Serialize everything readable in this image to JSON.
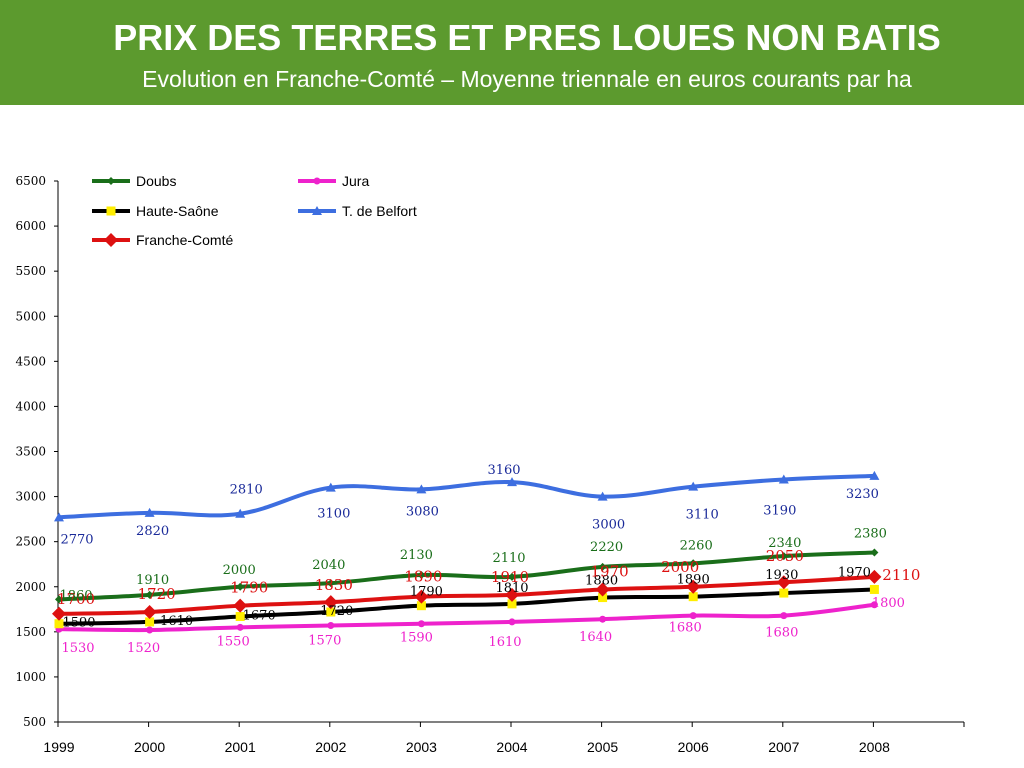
{
  "header": {
    "title": "PRIX DES TERRES ET PRES LOUES NON BATIS",
    "subtitle": "Evolution en Franche-Comté – Moyenne triennale en euros courants par ha",
    "background_color": "#5c9a2e"
  },
  "chart_data": {
    "type": "line",
    "title": "PRIX DES TERRES ET PRES LOUES NON BATIS",
    "subtitle": "Evolution en Franche-Comté – Moyenne triennale en euros courants par ha",
    "xlabel": "",
    "ylabel": "",
    "x": [
      "1999",
      "2000",
      "2001",
      "2002",
      "2003",
      "2004",
      "2005",
      "2006",
      "2007",
      "2008"
    ],
    "ylim": [
      500,
      6500
    ],
    "yticks": [
      500,
      1000,
      1500,
      2000,
      2500,
      3000,
      3500,
      4000,
      4500,
      5000,
      5500,
      6000,
      6500
    ],
    "grid": false,
    "legend": "top-left",
    "series": [
      {
        "name": "Doubs",
        "color": "#1a6e1a",
        "marker": "diamond",
        "values": [
          1860,
          1910,
          2000,
          2040,
          2130,
          2110,
          2220,
          2260,
          2340,
          2380
        ]
      },
      {
        "name": "Jura",
        "color": "#ee22cc",
        "marker": "circle",
        "values": [
          1530,
          1520,
          1550,
          1570,
          1590,
          1610,
          1640,
          1680,
          1680,
          1800
        ]
      },
      {
        "name": "Haute-Saône",
        "color": "#000000",
        "marker": "square",
        "marker_color": "#ffee00",
        "values": [
          1590,
          1610,
          1670,
          1720,
          1790,
          1810,
          1880,
          1890,
          1930,
          1970
        ]
      },
      {
        "name": "T. de Belfort",
        "color": "#3d6ee0",
        "marker": "triangle",
        "values": [
          2770,
          2820,
          2810,
          3100,
          3080,
          3160,
          3000,
          3110,
          3190,
          3230
        ]
      },
      {
        "name": "Franche-Comté",
        "color": "#dd1111",
        "marker": "diamond",
        "values": [
          1700,
          1720,
          1790,
          1830,
          1890,
          1910,
          1970,
          2000,
          2050,
          2110
        ]
      }
    ]
  }
}
